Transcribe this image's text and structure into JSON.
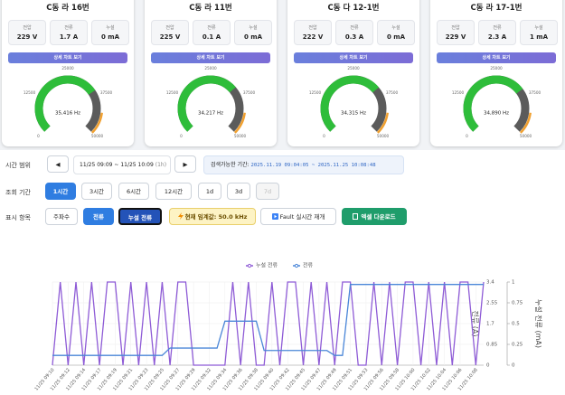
{
  "cards": [
    {
      "title": "C동 라 16번",
      "voltage": "229 V",
      "current": "1.7 A",
      "leakage": "0 mA",
      "frequency": {
        "value": 35416,
        "label": "35,416 Hz"
      }
    },
    {
      "title": "C동 라 11번",
      "voltage": "225 V",
      "current": "0.1 A",
      "leakage": "0 mA",
      "frequency": {
        "value": 34217,
        "label": "34,217 Hz"
      }
    },
    {
      "title": "C동 다 12-1번",
      "voltage": "222 V",
      "current": "0.3 A",
      "leakage": "0 mA",
      "frequency": {
        "value": 34315,
        "label": "34,315 Hz"
      }
    },
    {
      "title": "C동 라 17-1번",
      "voltage": "229 V",
      "current": "2.3 A",
      "leakage": "1 mA",
      "frequency": {
        "value": 34890,
        "label": "34,890 Hz"
      }
    }
  ],
  "metric_labels": [
    "전압",
    "전류",
    "누설"
  ],
  "detail_button": "상세 차트 보기",
  "gauge": {
    "range": [
      0,
      50000
    ],
    "ticks": [
      0,
      12500,
      25000,
      37500,
      50000
    ]
  },
  "controls": {
    "time_range": {
      "label": "시간 범위",
      "prev": "◀",
      "next": "▶",
      "range": "11/25 09:09 ~ 11/25 10:09",
      "duration": "(1h)",
      "search_label": "검색가능한 기간:",
      "search_range": "2025.11.19 09:04:05 ~ 2025.11.25 10:08:48"
    },
    "period": {
      "label": "조회 기간",
      "options": [
        "1시간",
        "3시간",
        "6시간",
        "12시간",
        "1d",
        "3d",
        "7d"
      ]
    },
    "display": {
      "label": "표시 항목",
      "options": [
        "주파수",
        "전류",
        "누설 전류"
      ],
      "threshold": "현재 임계값: 50.0 kHz",
      "fault": "Fault 실시간 재개",
      "excel": "엑셀 다운로드"
    }
  },
  "chart": {
    "type": "line",
    "categories": [
      "11/25 09:10",
      null,
      "11/25 09:12",
      null,
      "11/25 09:14",
      null,
      "11/25 09:17",
      null,
      "11/25 09:19",
      null,
      "11/25 09:21",
      null,
      "11/25 09:23",
      null,
      "11/25 09:25",
      null,
      "11/25 09:27",
      null,
      "11/25 09:29",
      null,
      "11/25 09:32",
      null,
      "11/25 09:34",
      null,
      "11/25 09:36",
      null,
      "11/25 09:38",
      null,
      "11/25 09:40",
      null,
      "11/25 09:42",
      null,
      "11/25 09:45",
      null,
      "11/25 09:47",
      null,
      "11/25 09:49",
      null,
      "11/25 09:51",
      null,
      "11/25 09:53",
      null,
      "11/25 09:56",
      null,
      "11/25 09:58",
      null,
      "11/25 10:00",
      null,
      "11/25 10:02",
      null,
      "11/25 10:04",
      null,
      "11/25 10:06",
      null,
      "11/25 10:08",
      null
    ],
    "series": [
      {
        "name": "누설 전류",
        "color": "#8e5bd6",
        "axis": "y2",
        "values": [
          0,
          1,
          0,
          1,
          0,
          1,
          0,
          1,
          1,
          0,
          1,
          0,
          1,
          0,
          1,
          0,
          1,
          1,
          0,
          0,
          0,
          0,
          0,
          1,
          0,
          1,
          0,
          0,
          1,
          0,
          1,
          1,
          0,
          1,
          0,
          1,
          0,
          1,
          1,
          0,
          0,
          1,
          0,
          1,
          0,
          1,
          1,
          0,
          1,
          0,
          1,
          0,
          1,
          1,
          0,
          1
        ]
      },
      {
        "name": "전류",
        "color": "#4a86d8",
        "axis": "y",
        "values": [
          0.4,
          0.4,
          0.4,
          0.4,
          0.4,
          0.4,
          0.4,
          0.4,
          0.4,
          0.4,
          0.4,
          0.4,
          0.4,
          0.4,
          0.4,
          0.7,
          0.7,
          0.7,
          0.7,
          0.7,
          0.7,
          0.7,
          1.8,
          1.8,
          1.8,
          1.8,
          1.8,
          0.6,
          0.6,
          0.6,
          0.6,
          0.6,
          0.6,
          0.6,
          0.6,
          0.6,
          0.4,
          0.4,
          3.3,
          3.3,
          3.3,
          3.3,
          3.3,
          3.3,
          3.3,
          3.3,
          3.3,
          3.3,
          3.3,
          3.3,
          3.3,
          3.3,
          3.3,
          3.3,
          3.3,
          3.3
        ]
      }
    ],
    "ylim": [
      0,
      3.4
    ],
    "yticks": [
      0,
      0.85,
      1.7,
      2.55,
      3.4
    ],
    "ylabel": "전류 (A)",
    "y2lim": [
      0,
      1
    ],
    "y2ticks": [
      0,
      0.25,
      0.5,
      0.75,
      1
    ],
    "y2label": "누설 전류 (mA)",
    "grid": true
  }
}
